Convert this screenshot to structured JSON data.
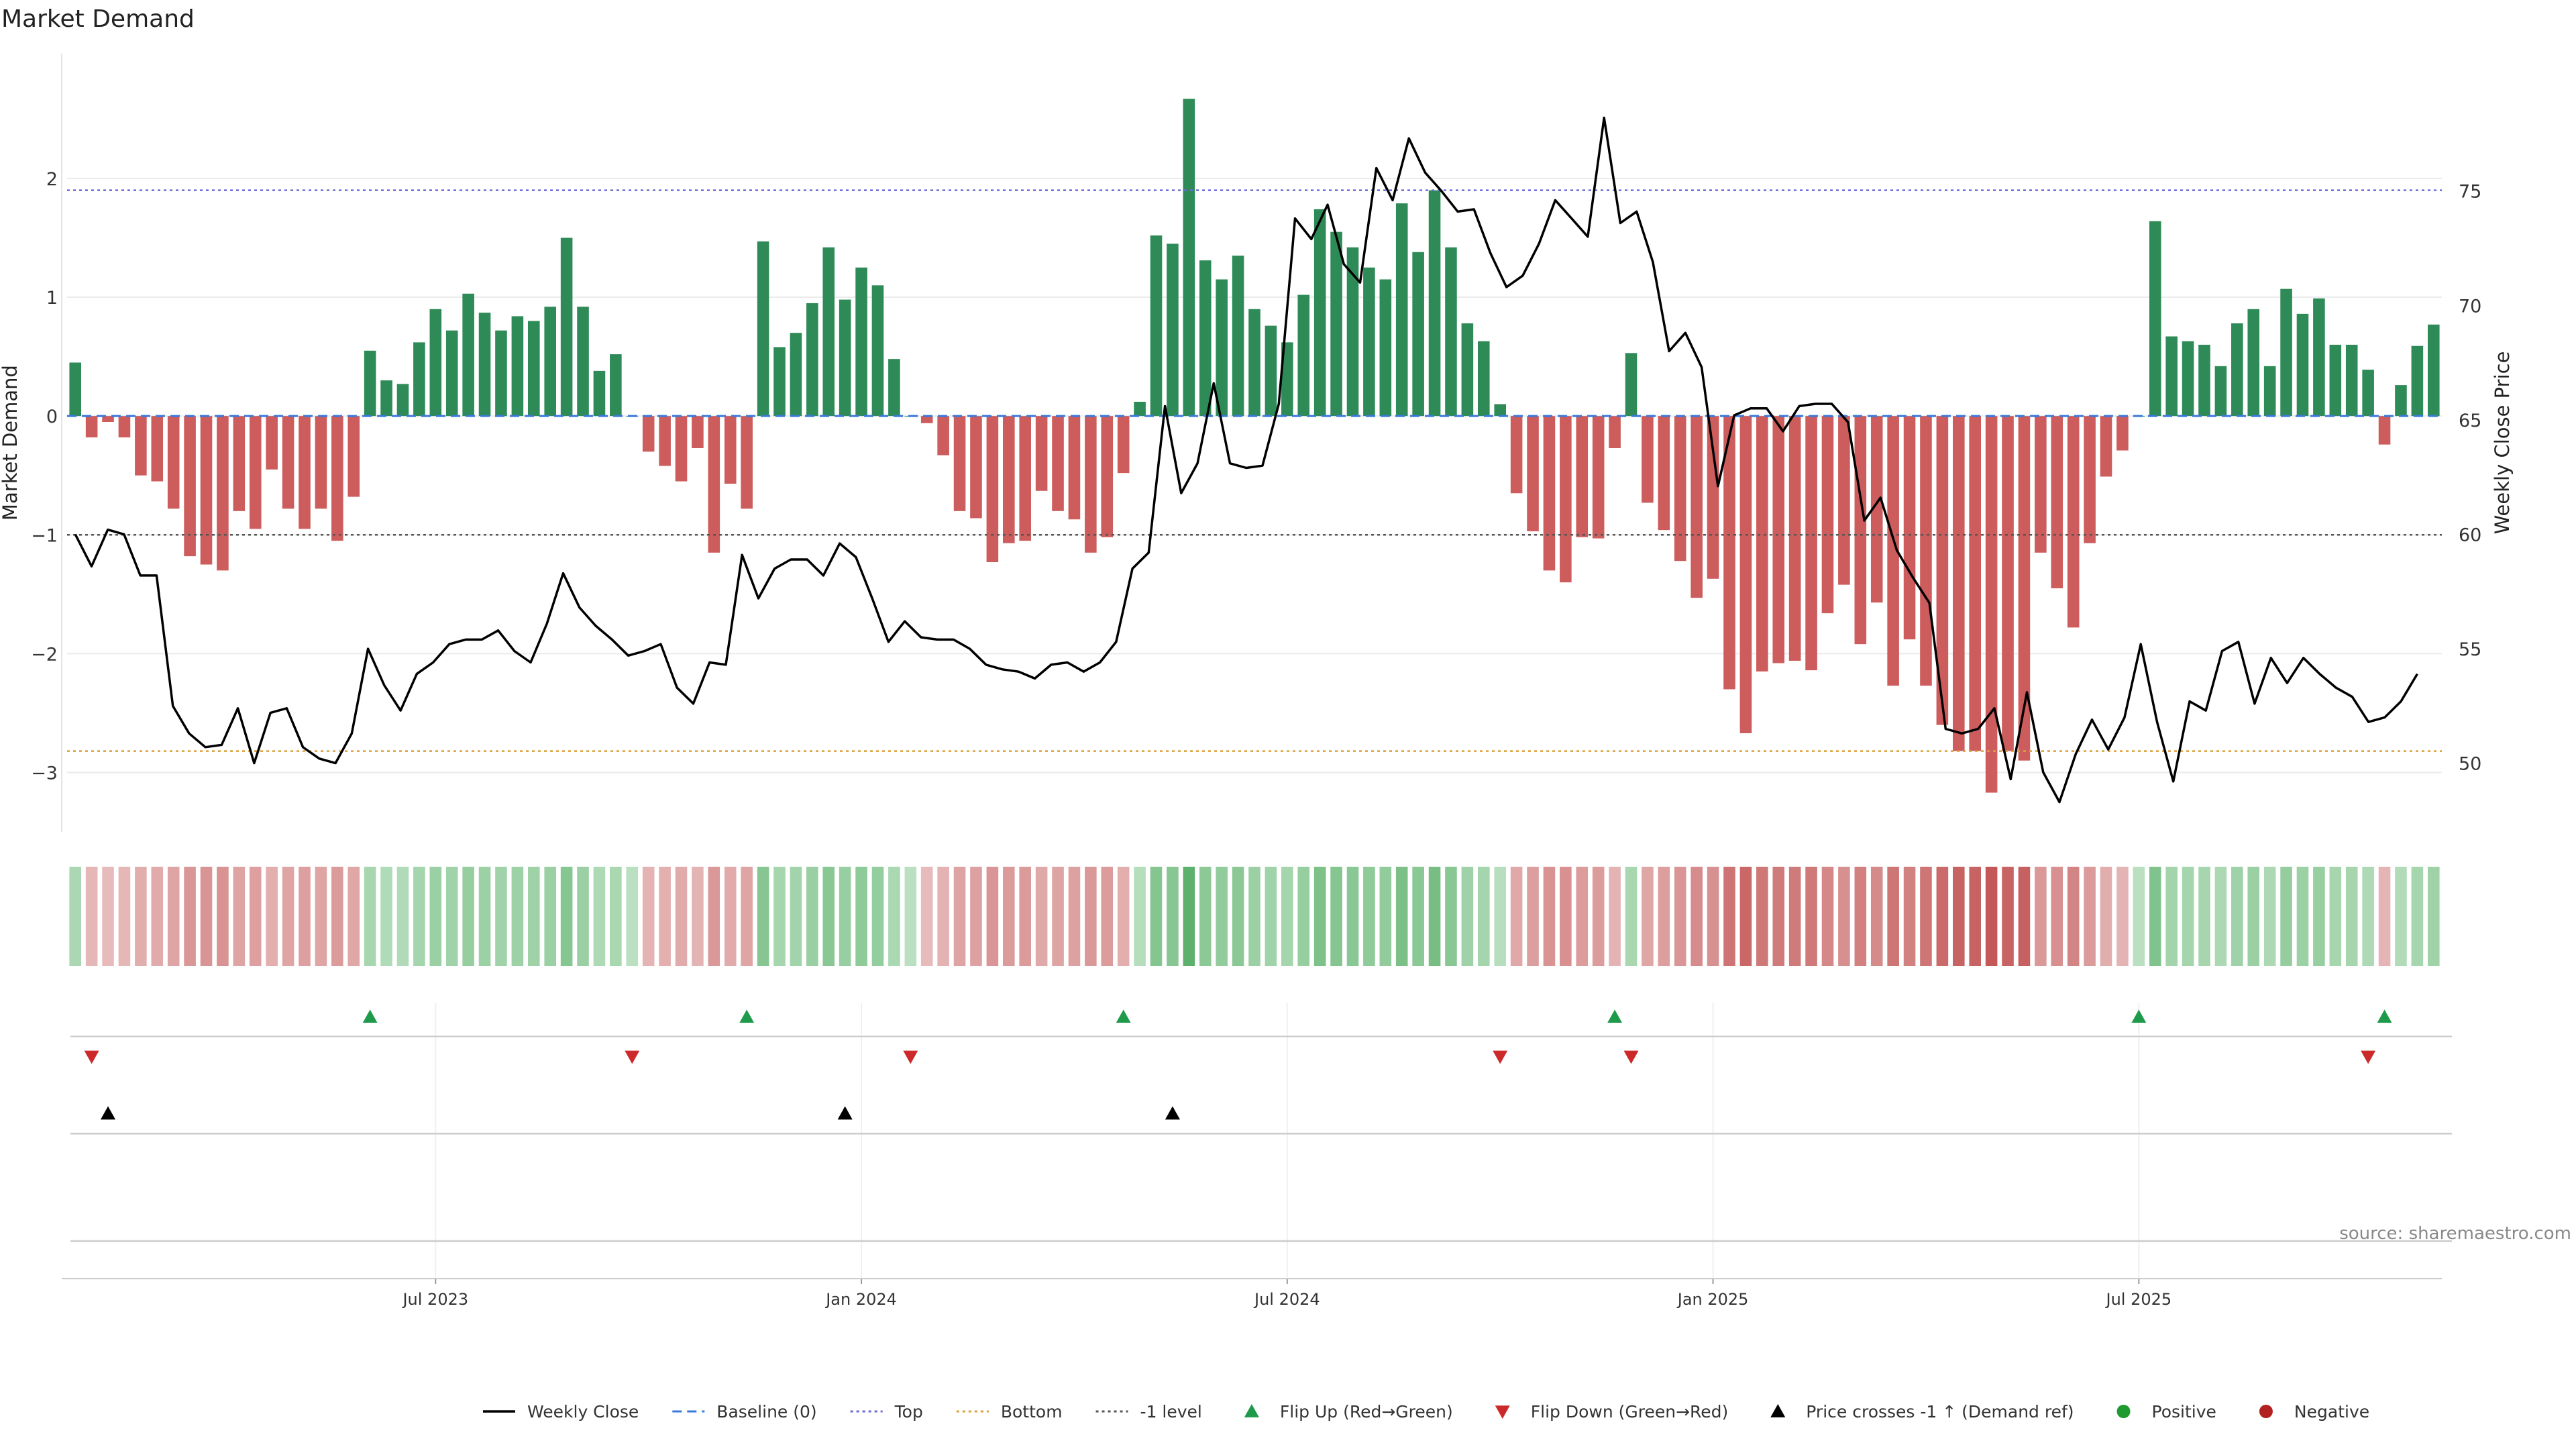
{
  "chart_data": {
    "type": "bar",
    "title": "Market Demand",
    "ylabel": "Market Demand",
    "y2label": "Weekly Close Price",
    "ylim": [
      -3.5,
      3.05
    ],
    "y2lim": [
      47,
      81
    ],
    "y_ticks": [
      -3,
      -2,
      -1,
      0,
      1,
      2
    ],
    "y_tick_labels": [
      "−3",
      "−2",
      "−1",
      "0",
      "1",
      "2"
    ],
    "y2_ticks": [
      50,
      55,
      60,
      65,
      70,
      75
    ],
    "x_ticks": [
      {
        "index": 22,
        "label": "Jul 2023"
      },
      {
        "index": 48,
        "label": "Jan 2024"
      },
      {
        "index": 74,
        "label": "Jul 2024"
      },
      {
        "index": 100,
        "label": "Jan 2025"
      },
      {
        "index": 126,
        "label": "Jul 2025"
      }
    ],
    "reference_lines": [
      {
        "name": "Top",
        "value": 1.9,
        "color": "#6b6bd6"
      },
      {
        "name": "-1 level",
        "value": -1.0,
        "color": "#555555"
      },
      {
        "name": "Bottom",
        "value": -2.82,
        "color": "#d9a13b"
      },
      {
        "name": "Baseline (0)",
        "value": 0,
        "color": "#3b7ad9"
      }
    ],
    "demand": [
      0.45,
      -0.18,
      -0.05,
      -0.18,
      -0.5,
      -0.55,
      -0.78,
      -1.18,
      -1.25,
      -1.3,
      -0.8,
      -0.95,
      -0.45,
      -0.78,
      -0.95,
      -0.78,
      -1.05,
      -0.68,
      0.55,
      0.3,
      0.27,
      0.62,
      0.9,
      0.72,
      1.03,
      0.87,
      0.72,
      0.84,
      0.8,
      0.92,
      1.5,
      0.92,
      0.38,
      0.52,
      0.0,
      -0.3,
      -0.42,
      -0.55,
      -0.27,
      -1.15,
      -0.57,
      -0.78,
      1.47,
      0.58,
      0.7,
      0.95,
      1.42,
      0.98,
      1.25,
      1.1,
      0.48,
      0.0,
      -0.06,
      -0.33,
      -0.8,
      -0.86,
      -1.23,
      -1.07,
      -1.05,
      -0.63,
      -0.8,
      -0.87,
      -1.15,
      -1.02,
      -0.48,
      0.12,
      1.52,
      1.45,
      2.67,
      1.31,
      1.15,
      1.35,
      0.9,
      0.76,
      0.62,
      1.02,
      1.74,
      1.55,
      1.42,
      1.25,
      1.15,
      1.79,
      1.38,
      1.9,
      1.42,
      0.78,
      0.63,
      0.1,
      -0.65,
      -0.97,
      -1.3,
      -1.4,
      -1.02,
      -1.03,
      -0.27,
      0.53,
      -0.73,
      -0.96,
      -1.22,
      -1.53,
      -1.37,
      -2.3,
      -2.67,
      -2.15,
      -2.08,
      -2.06,
      -2.14,
      -1.66,
      -1.42,
      -1.92,
      -1.57,
      -2.27,
      -1.88,
      -2.27,
      -2.6,
      -2.82,
      -2.82,
      -3.17,
      -2.82,
      -2.9,
      -1.15,
      -1.45,
      -1.78,
      -1.07,
      -0.51,
      -0.29,
      0.0,
      1.64,
      0.67,
      0.63,
      0.6,
      0.42,
      0.78,
      0.9,
      0.42,
      1.07,
      0.86,
      0.99,
      0.6,
      0.6,
      0.39,
      -0.24,
      0.26,
      0.59,
      0.77
    ],
    "weekly_close": {
      "index_start": 0,
      "index_end": 143,
      "values": [
        60,
        58.6,
        60.2,
        60,
        58.2,
        58.2,
        52.5,
        51.3,
        50.7,
        50.8,
        52.4,
        50,
        52.2,
        52.4,
        50.7,
        50.2,
        50,
        51.3,
        55,
        53.4,
        52.3,
        53.9,
        54.4,
        55.2,
        55.4,
        55.4,
        55.8,
        54.9,
        54.4,
        56.1,
        58.3,
        56.8,
        56,
        55.4,
        54.7,
        54.9,
        55.2,
        53.3,
        52.6,
        54.4,
        54.3,
        59.1,
        57.2,
        58.5,
        58.9,
        58.9,
        58.2,
        59.6,
        59,
        57.2,
        55.3,
        56.2,
        55.5,
        55.4,
        55.4,
        55,
        54.3,
        54.1,
        54,
        53.7,
        54.3,
        54.4,
        54,
        54.4,
        55.3,
        58.5,
        59.2,
        65.6,
        61.8,
        63.1,
        66.6,
        63.1,
        62.9,
        63,
        65.7,
        73.8,
        72.9,
        74.4,
        71.8,
        71,
        76,
        74.6,
        77.3,
        75.8,
        75,
        74.1,
        74.2,
        72.3,
        70.8,
        71.3,
        72.7,
        74.6,
        73.8,
        73,
        78.2,
        73.6,
        74.1,
        71.9,
        68,
        68.8,
        67.3,
        62.1,
        65.2,
        65.5,
        65.5,
        64.5,
        65.6,
        65.7,
        65.7,
        64.9,
        60.6,
        61.6,
        59.3,
        58.1,
        57,
        51.5,
        51.3,
        51.5,
        52.4,
        49.3,
        53.1,
        49.6,
        48.3,
        50.4,
        51.9,
        50.6,
        52,
        55.2,
        51.8,
        49.2,
        52.7,
        52.3,
        54.9,
        55.3,
        52.6,
        54.6,
        53.5,
        54.6,
        53.9,
        53.3,
        52.9,
        51.8,
        52,
        52.7,
        53.9
      ]
    },
    "flip_up": [
      18,
      41,
      64,
      94,
      126,
      141
    ],
    "flip_down": [
      1,
      34,
      51,
      87,
      95,
      140
    ],
    "price_cross": [
      2,
      47,
      67
    ],
    "source": "source: sharemaestro.com"
  },
  "legend": [
    {
      "label": "Weekly Close",
      "icon": "line",
      "color": "#000000"
    },
    {
      "label": "Baseline (0)",
      "icon": "dash",
      "color": "#3b7ad9"
    },
    {
      "label": "Top",
      "icon": "dot",
      "color": "#6b6bd6"
    },
    {
      "label": "Bottom",
      "icon": "dot",
      "color": "#d9a13b"
    },
    {
      "label": "-1 level",
      "icon": "dot",
      "color": "#555555"
    },
    {
      "label": "Flip Up (Red→Green)",
      "icon": "triangle-up",
      "color": "#1e9a4a"
    },
    {
      "label": "Flip Down (Green→Red)",
      "icon": "triangle-down",
      "color": "#cc2a2a"
    },
    {
      "label": "Price crosses -1 ↑ (Demand ref)",
      "icon": "triangle-up",
      "color": "#000000"
    },
    {
      "label": "Positive",
      "icon": "circle",
      "color": "#1e9a30"
    },
    {
      "label": "Negative",
      "icon": "circle",
      "color": "#b22020"
    }
  ],
  "colors": {
    "positive_bar": "#2e8b57",
    "negative_bar": "#cd5c5c",
    "price_line": "#000000"
  }
}
